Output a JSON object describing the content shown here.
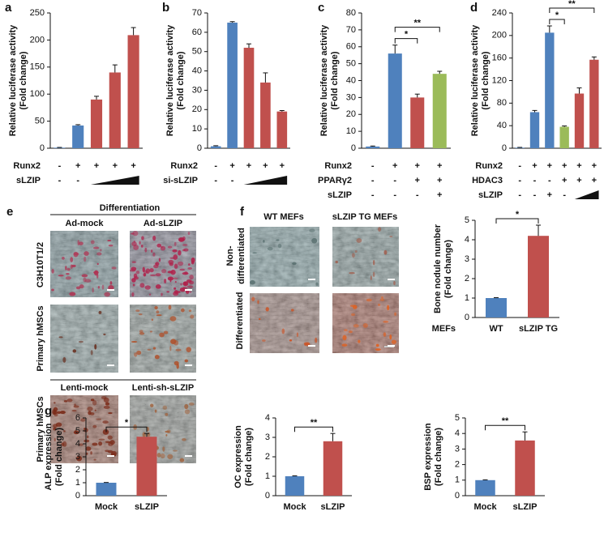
{
  "chart_data": [
    {
      "type": "bar",
      "label": "a",
      "ylabel": [
        "Relative luciferase activity",
        "(Fold change)"
      ],
      "ylim": [
        0,
        250
      ],
      "yticks": [
        0,
        50,
        100,
        150,
        200,
        250
      ],
      "values": [
        1,
        42,
        90,
        140,
        209
      ],
      "errors": [
        0.5,
        1.5,
        6,
        14,
        14
      ],
      "colors": [
        "#4f81bd",
        "#4f81bd",
        "#c0504d",
        "#c0504d",
        "#c0504d"
      ],
      "conditions": [
        {
          "name": "Runx2",
          "marks": [
            "-",
            "+",
            "+",
            "+",
            "+"
          ]
        },
        {
          "name": "sLZIP",
          "marks": [
            "-",
            "-",
            null,
            null,
            null
          ]
        }
      ]
    },
    {
      "type": "bar",
      "label": "b",
      "ylabel": [
        "Relative luciferase activity",
        "(Fold change)"
      ],
      "ylim": [
        0,
        70
      ],
      "yticks": [
        0,
        10,
        20,
        30,
        40,
        50,
        60,
        70
      ],
      "values": [
        1,
        65,
        52,
        34,
        19
      ],
      "errors": [
        0.3,
        0.5,
        2,
        5,
        0.5
      ],
      "colors": [
        "#4f81bd",
        "#4f81bd",
        "#c0504d",
        "#c0504d",
        "#c0504d"
      ],
      "conditions": [
        {
          "name": "Runx2",
          "marks": [
            "-",
            "+",
            "+",
            "+",
            "+"
          ]
        },
        {
          "name": "si-sLZIP",
          "marks": [
            "-",
            "-",
            null,
            null,
            null
          ]
        }
      ]
    },
    {
      "type": "bar",
      "label": "c",
      "ylabel": [
        "Relative luciferase activity",
        "(Fold change)"
      ],
      "ylim": [
        0,
        80
      ],
      "yticks": [
        0,
        10,
        20,
        30,
        40,
        50,
        60,
        70,
        80
      ],
      "values": [
        1,
        56,
        30,
        44
      ],
      "errors": [
        0.3,
        5,
        2,
        1.5
      ],
      "colors": [
        "#4f81bd",
        "#4f81bd",
        "#c0504d",
        "#9bbb59"
      ],
      "conditions": [
        {
          "name": "Runx2",
          "marks": [
            "-",
            "+",
            "+",
            "+"
          ]
        },
        {
          "name": "PPARγ2",
          "marks": [
            "-",
            "-",
            "+",
            "+"
          ]
        },
        {
          "name": "sLZIP",
          "marks": [
            "-",
            "-",
            "-",
            "+"
          ]
        }
      ],
      "significance": [
        {
          "from": 1,
          "to": 2,
          "label": "*"
        },
        {
          "from": 1,
          "to": 3,
          "label": "**"
        }
      ]
    },
    {
      "type": "bar",
      "label": "d",
      "ylabel": [
        "Relative luciferase activity",
        "(Fold change)"
      ],
      "ylim": [
        0,
        240
      ],
      "yticks": [
        0,
        40,
        80,
        120,
        160,
        200,
        240
      ],
      "values": [
        1,
        64,
        205,
        38,
        97,
        157
      ],
      "errors": [
        0.5,
        3,
        12,
        1.5,
        10,
        5
      ],
      "colors": [
        "#4f81bd",
        "#4f81bd",
        "#4f81bd",
        "#9bbb59",
        "#c0504d",
        "#c0504d"
      ],
      "conditions": [
        {
          "name": "Runx2",
          "marks": [
            "-",
            "+",
            "+",
            "+",
            "+",
            "+"
          ]
        },
        {
          "name": "HDAC3",
          "marks": [
            "-",
            "-",
            "-",
            "+",
            "+",
            "+"
          ]
        },
        {
          "name": "sLZIP",
          "marks": [
            "-",
            "-",
            "+",
            "-",
            null,
            null
          ]
        }
      ],
      "significance": [
        {
          "from": 2,
          "to": 3,
          "label": "*"
        },
        {
          "from": 2,
          "to": 5,
          "label": "**"
        }
      ]
    },
    {
      "type": "bar",
      "ylabel": [
        "Bone nodule number",
        "(Fold change)"
      ],
      "xlabel": "MEFs",
      "ylim": [
        0,
        5
      ],
      "yticks": [
        0,
        1,
        2,
        3,
        4,
        5
      ],
      "categories": [
        "WT",
        "sLZIP TG"
      ],
      "values": [
        1,
        4.2
      ],
      "errors": [
        0.02,
        0.55
      ],
      "colors": [
        "#4f81bd",
        "#c0504d"
      ],
      "significance": [
        {
          "from": 0,
          "to": 1,
          "label": "*"
        }
      ]
    },
    {
      "type": "bar",
      "label": "g",
      "ylabel": [
        "ALP expression",
        "(Fold change)"
      ],
      "ylim": [
        0,
        6
      ],
      "yticks": [
        0,
        1,
        2,
        3,
        4,
        5,
        6
      ],
      "categories": [
        "Mock",
        "sLZIP"
      ],
      "values": [
        1,
        4.55
      ],
      "errors": [
        0.02,
        0.25
      ],
      "colors": [
        "#4f81bd",
        "#c0504d"
      ],
      "significance": [
        {
          "from": 0,
          "to": 1,
          "label": "*"
        }
      ]
    },
    {
      "type": "bar",
      "ylabel": [
        "OC expression",
        "(Fold change)"
      ],
      "ylim": [
        0,
        4
      ],
      "yticks": [
        0,
        1,
        2,
        3,
        4
      ],
      "categories": [
        "Mock",
        "sLZIP"
      ],
      "values": [
        1,
        2.8
      ],
      "errors": [
        0.02,
        0.4
      ],
      "colors": [
        "#4f81bd",
        "#c0504d"
      ],
      "significance": [
        {
          "from": 0,
          "to": 1,
          "label": "**"
        }
      ]
    },
    {
      "type": "bar",
      "ylabel": [
        "BSP expression",
        "(Fold change)"
      ],
      "ylim": [
        0,
        5
      ],
      "yticks": [
        0,
        1,
        2,
        3,
        4,
        5
      ],
      "categories": [
        "Mock",
        "sLZIP"
      ],
      "values": [
        1,
        3.55
      ],
      "errors": [
        0.02,
        0.55
      ],
      "colors": [
        "#4f81bd",
        "#c0504d"
      ],
      "significance": [
        {
          "from": 0,
          "to": 1,
          "label": "**"
        }
      ]
    }
  ],
  "panel_e": {
    "label": "e",
    "heading": "Differentiation",
    "columns": [
      "Ad-mock",
      "Ad-sLZIP"
    ],
    "rows": [
      "C3H10T1/2",
      "Primary hMSCs"
    ],
    "columns2": [
      "Lenti-mock",
      "Lenti-sh-sLZIP"
    ],
    "row2": "Primary hMSCs"
  },
  "panel_f": {
    "label": "f",
    "columns": [
      "WT MEFs",
      "sLZIP TG MEFs"
    ],
    "rows": [
      [
        "Non-",
        "differentiated"
      ],
      [
        "Differentiated"
      ]
    ]
  }
}
